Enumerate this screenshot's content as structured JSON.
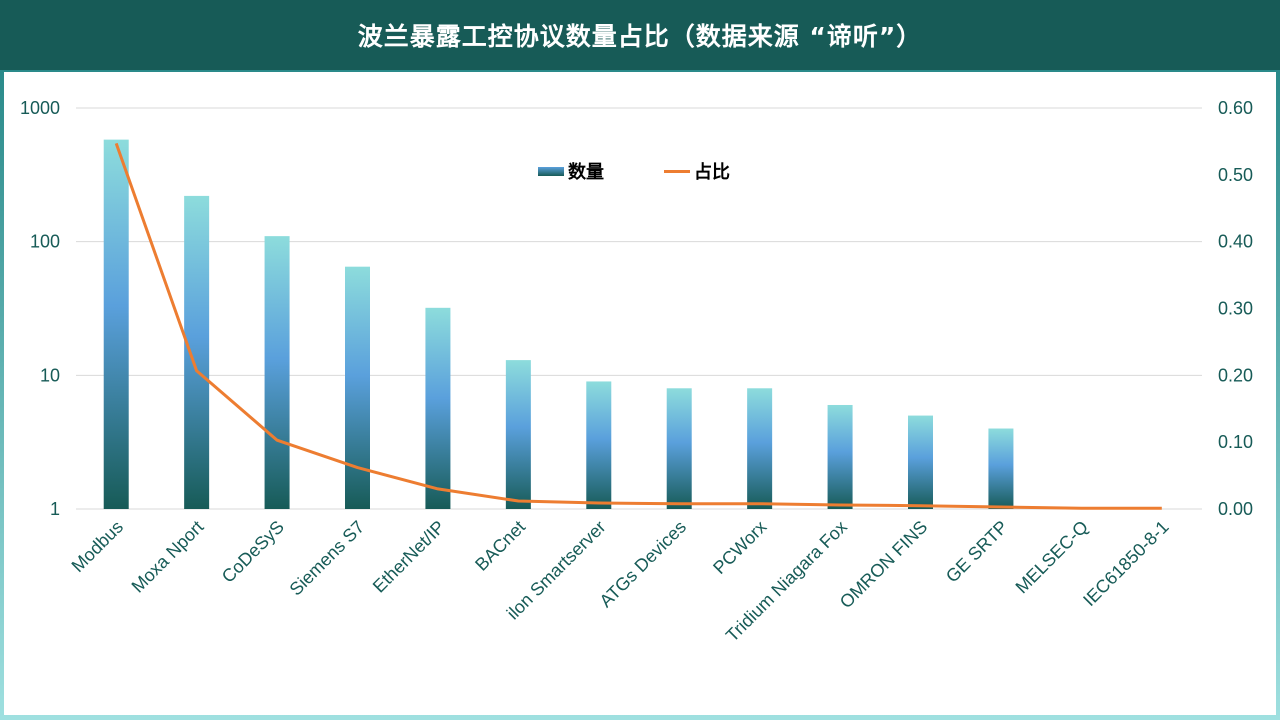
{
  "header": {
    "title": "波兰暴露工控协议数量占比（数据来源 “谛听”）"
  },
  "colors": {
    "header_bg": "#175b57",
    "axis_text": "#175b57",
    "bar_top": "#8ddcdc",
    "bar_mid": "#5aa0dc",
    "bar_bottom": "#175b57",
    "line": "#ed7d31",
    "grid": "#d9d9d9"
  },
  "chart_data": {
    "type": "bar",
    "categories": [
      "Modbus",
      "Moxa Nport",
      "CoDeSyS",
      "Siemens S7",
      "EtherNet/IP",
      "BACnet",
      "ilon Smartserver",
      "ATGs Devices",
      "PCWorx",
      "Tridium Niagara Fox",
      "OMRON FINS",
      "GE SRTP",
      "MELSEC-Q",
      "IEC61850-8-1"
    ],
    "series": [
      {
        "name": "数量",
        "type": "bar",
        "axis": "left",
        "values": [
          580,
          220,
          110,
          65,
          32,
          13,
          9,
          8,
          8,
          6,
          5,
          4,
          1,
          1
        ]
      },
      {
        "name": "占比",
        "type": "line",
        "axis": "right",
        "values": [
          0.547,
          0.207,
          0.103,
          0.062,
          0.03,
          0.012,
          0.009,
          0.008,
          0.008,
          0.006,
          0.005,
          0.003,
          0.001,
          0.001
        ]
      }
    ],
    "y_left": {
      "scale": "log",
      "ylim": [
        1,
        1000
      ],
      "ticks": [
        "1",
        "10",
        "100",
        "1000"
      ]
    },
    "y_right": {
      "scale": "linear",
      "ylim": [
        0,
        0.6
      ],
      "ticks": [
        "0.00",
        "0.10",
        "0.20",
        "0.30",
        "0.40",
        "0.50",
        "0.60"
      ]
    },
    "grid": true,
    "legend_position": "top-center"
  }
}
